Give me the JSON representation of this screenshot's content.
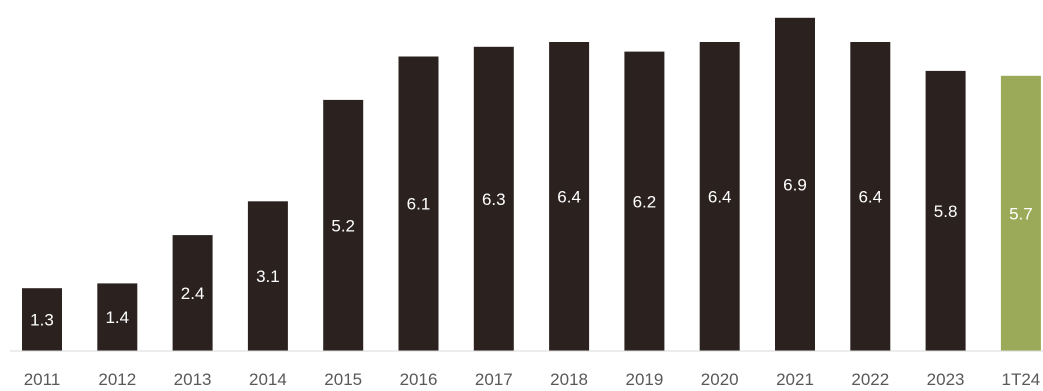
{
  "chart_data": {
    "type": "bar",
    "title": "",
    "xlabel": "",
    "ylabel": "",
    "categories": [
      "2011",
      "2012",
      "2013",
      "2014",
      "2015",
      "2016",
      "2017",
      "2018",
      "2019",
      "2020",
      "2021",
      "2022",
      "2023",
      "1T24"
    ],
    "values": [
      1.3,
      1.4,
      2.4,
      3.1,
      5.2,
      6.1,
      6.3,
      6.4,
      6.2,
      6.4,
      6.9,
      6.4,
      5.8,
      5.7
    ],
    "data_labels": [
      "1.3",
      "1.4",
      "2.4",
      "3.1",
      "5.2",
      "6.1",
      "6.3",
      "6.4",
      "6.2",
      "6.4",
      "6.9",
      "6.4",
      "5.8",
      "5.7"
    ],
    "ylim": [
      0,
      7.0
    ],
    "grid": false,
    "legend": "none",
    "colors": {
      "bar": "#2b2220",
      "highlight": "#9aaa58",
      "axis": "#d9d9d9"
    },
    "highlight_categories": [
      "1T24"
    ]
  }
}
